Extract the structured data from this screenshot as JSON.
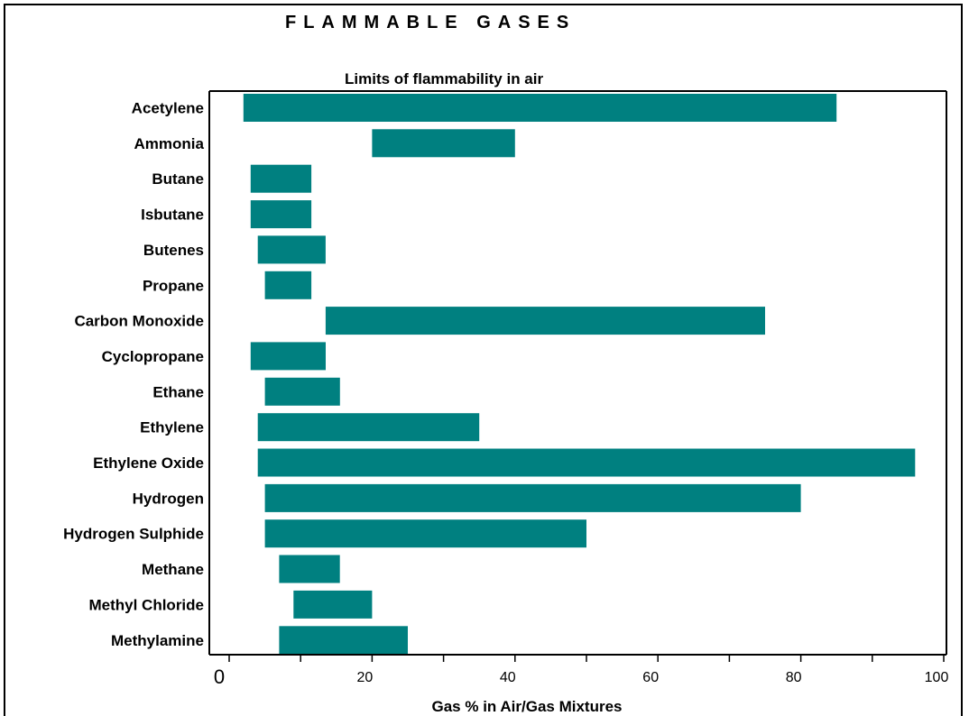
{
  "page_title": "FLAMMABLE GASES",
  "chart_data": {
    "type": "bar",
    "orientation": "horizontal-range",
    "title": "Limits of flammability in air",
    "xlabel": "Gas % in Air/Gas Mixtures",
    "ylabel": "",
    "xlim": [
      0,
      100
    ],
    "xticks": [
      "0",
      "20",
      "40",
      "60",
      "80",
      "100"
    ],
    "minor_ticks_every": 10,
    "color": "#008080",
    "categories": [
      "Acetylene",
      "Ammonia",
      "Butane",
      "Isbutane",
      "Butenes",
      "Propane",
      "Carbon Monoxide",
      "Cyclopropane",
      "Ethane",
      "Ethylene",
      "Ethylene Oxide",
      "Hydrogen",
      "Hydrogen Sulphide",
      "Methane ",
      "Methyl Chloride",
      "Methylamine"
    ],
    "series": [
      {
        "lower": [
          2.0,
          20.0,
          3.0,
          3.0,
          4.0,
          5.0,
          13.5,
          3.0,
          5.0,
          4.0,
          4.0,
          5.0,
          5.0,
          7.0,
          9.0,
          7.0
        ],
        "upper": [
          85.0,
          40.0,
          11.5,
          11.5,
          13.5,
          11.5,
          75.0,
          13.5,
          15.5,
          35.0,
          96.0,
          80.0,
          50.0,
          15.5,
          20.0,
          25.0
        ]
      }
    ],
    "grid": false,
    "legend": "none"
  }
}
